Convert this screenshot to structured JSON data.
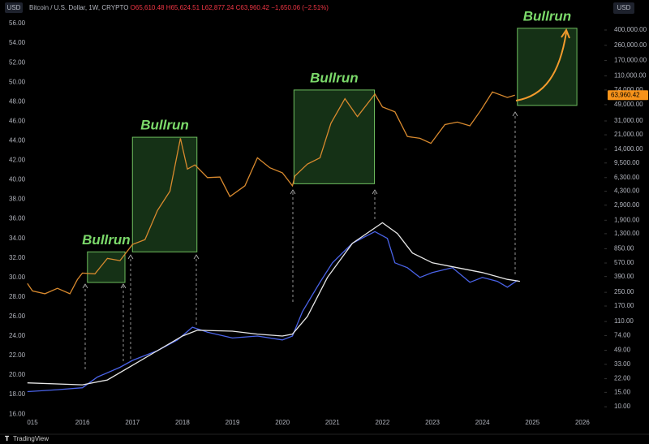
{
  "chart_data": {
    "type": "line",
    "header": {
      "axis_unit_left": "USD",
      "symbol": "Bitcoin / U.S. Dollar, 1W, CRYPTO",
      "open": "O65,610.48",
      "high": "H65,624.51",
      "low": "L62,877.24",
      "close": "C63,960.42",
      "change": "−1,650.06 (−2.51%)"
    },
    "axis_unit_right": "USD",
    "footer": "TradingView",
    "xlim": [
      2014.87,
      2026.44
    ],
    "xticks": [
      {
        "value": 2015,
        "label": "015"
      },
      2016,
      2017,
      2018,
      2019,
      2020,
      2021,
      2022,
      2023,
      2024,
      2025,
      2026
    ],
    "ylim": [
      15.85,
      58.0
    ],
    "yticks": [
      {
        "value": 16,
        "label": "16.00"
      },
      {
        "value": 18,
        "label": "18.00"
      },
      {
        "value": 20,
        "label": "20.00"
      },
      {
        "value": 22,
        "label": "22.00"
      },
      {
        "value": 24,
        "label": "24.00"
      },
      {
        "value": 26,
        "label": "26.00"
      },
      {
        "value": 28,
        "label": "28.00"
      },
      {
        "value": 30,
        "label": "30.00"
      },
      {
        "value": 32,
        "label": "32.00"
      },
      {
        "value": 34,
        "label": "34.00"
      },
      {
        "value": 36,
        "label": "36.00"
      },
      {
        "value": 38,
        "label": "38.00"
      },
      {
        "value": 40,
        "label": "40.00"
      },
      {
        "value": 42,
        "label": "42.00"
      },
      {
        "value": 44,
        "label": "44.00"
      },
      {
        "value": 46,
        "label": "46.00"
      },
      {
        "value": 48,
        "label": "48.00"
      },
      {
        "value": 50,
        "label": "50.00"
      },
      {
        "value": 52,
        "label": "52.00"
      },
      {
        "value": 54,
        "label": "54.00"
      },
      {
        "value": 56,
        "label": "56.00"
      }
    ],
    "y2log": true,
    "y2lim": [
      7.8,
      830000
    ],
    "y2ticks": [
      {
        "value": 400000,
        "label": "400,000.00"
      },
      {
        "value": 260000,
        "label": "260,000.00"
      },
      {
        "value": 170000,
        "label": "170,000.00"
      },
      {
        "value": 110000,
        "label": "110,000.00"
      },
      {
        "value": 74000,
        "label": "74,000.00"
      },
      {
        "value": 49000,
        "label": "49,000.00"
      },
      {
        "value": 31000,
        "label": "31,000.00"
      },
      {
        "value": 21000,
        "label": "21,000.00"
      },
      {
        "value": 14000,
        "label": "14,000.00"
      },
      {
        "value": 9500,
        "label": "9,500.00"
      },
      {
        "value": 6300,
        "label": "6,300.00"
      },
      {
        "value": 4300,
        "label": "4,300.00"
      },
      {
        "value": 2900,
        "label": "2,900.00"
      },
      {
        "value": 1900,
        "label": "1,900.00"
      },
      {
        "value": 1300,
        "label": "1,300.00"
      },
      {
        "value": 850,
        "label": "850.00"
      },
      {
        "value": 570,
        "label": "570.00"
      },
      {
        "value": 390,
        "label": "390.00"
      },
      {
        "value": 250,
        "label": "250.00"
      },
      {
        "value": 170,
        "label": "170.00"
      },
      {
        "value": 110,
        "label": "110.00"
      },
      {
        "value": 74,
        "label": "74.00"
      },
      {
        "value": 49,
        "label": "49.00"
      },
      {
        "value": 33,
        "label": "33.00"
      },
      {
        "value": 22,
        "label": "22.00"
      },
      {
        "value": 15,
        "label": "15.00"
      },
      {
        "value": 10,
        "label": "10.00"
      }
    ],
    "price_label": {
      "value": 63960.42,
      "label": "63,960.42"
    },
    "grid": true,
    "series": [
      {
        "color": "#d98a2e",
        "axis": "y2",
        "x": [
          2014.9,
          2015.0,
          2015.25,
          2015.5,
          2015.75,
          2015.9,
          2016.0,
          2016.25,
          2016.5,
          2016.75,
          2017.0,
          2017.25,
          2017.5,
          2017.75,
          2017.96,
          2018.1,
          2018.25,
          2018.5,
          2018.75,
          2018.95,
          2019.25,
          2019.5,
          2019.75,
          2020.0,
          2020.2,
          2020.25,
          2020.5,
          2020.75,
          2020.97,
          2021.25,
          2021.5,
          2021.85,
          2022.0,
          2022.25,
          2022.5,
          2022.75,
          2022.97,
          2023.25,
          2023.5,
          2023.75,
          2023.97,
          2024.2,
          2024.5,
          2024.65
        ],
        "values": [
          320,
          260,
          240,
          280,
          240,
          360,
          430,
          420,
          650,
          610,
          960,
          1100,
          2500,
          4300,
          19000,
          8000,
          9000,
          6300,
          6400,
          3700,
          5000,
          11000,
          8300,
          7200,
          5000,
          6600,
          9200,
          11000,
          29000,
          58000,
          35000,
          66000,
          46000,
          40000,
          20000,
          19000,
          16500,
          28000,
          30000,
          27000,
          42000,
          70000,
          60000,
          63960.42
        ]
      },
      {
        "color": "#4a63e8",
        "axis": "y",
        "x": [
          2014.9,
          2015.5,
          2016.0,
          2016.3,
          2016.75,
          2017.0,
          2017.5,
          2017.9,
          2018.2,
          2018.5,
          2019.0,
          2019.5,
          2020.0,
          2020.2,
          2020.4,
          2020.75,
          2021.0,
          2021.4,
          2021.85,
          2022.1,
          2022.25,
          2022.5,
          2022.75,
          2023.0,
          2023.4,
          2023.75,
          2024.0,
          2024.3,
          2024.5,
          2024.7
        ],
        "values": [
          18.3,
          18.5,
          18.7,
          19.8,
          20.8,
          21.5,
          22.5,
          23.6,
          24.9,
          24.4,
          23.8,
          24.0,
          23.6,
          24.0,
          26.5,
          29.5,
          31.5,
          33.5,
          34.7,
          34.0,
          31.5,
          31.0,
          30.0,
          30.5,
          31.0,
          29.5,
          30.0,
          29.6,
          29.0,
          29.7
        ]
      },
      {
        "color": "#e8e8e8",
        "axis": "y",
        "x": [
          2014.9,
          2016.0,
          2016.5,
          2017.0,
          2017.5,
          2018.0,
          2018.3,
          2019.0,
          2019.5,
          2020.0,
          2020.2,
          2020.5,
          2020.9,
          2021.4,
          2022.0,
          2022.3,
          2022.6,
          2023.0,
          2023.5,
          2024.0,
          2024.5,
          2024.75
        ],
        "values": [
          19.2,
          19.0,
          19.5,
          21.0,
          22.5,
          24.0,
          24.6,
          24.5,
          24.2,
          24.0,
          24.2,
          26.0,
          30.0,
          33.5,
          35.6,
          34.5,
          32.5,
          31.5,
          31.0,
          30.5,
          29.8,
          29.6
        ]
      }
    ],
    "regions": [
      {
        "label": "Bullrun",
        "x": [
          2016.1,
          2016.85
        ],
        "y2": [
          330,
          780
        ]
      },
      {
        "label": "Bullrun",
        "x": [
          2017.0,
          2018.29
        ],
        "y2": [
          780,
          19600
        ]
      },
      {
        "label": "Bullrun",
        "x": [
          2020.23,
          2021.84
        ],
        "y2": [
          5300,
          74000
        ]
      },
      {
        "label": "Bullrun",
        "x": [
          2024.7,
          2025.89
        ],
        "y2": [
          48000,
          420000
        ]
      }
    ]
  }
}
